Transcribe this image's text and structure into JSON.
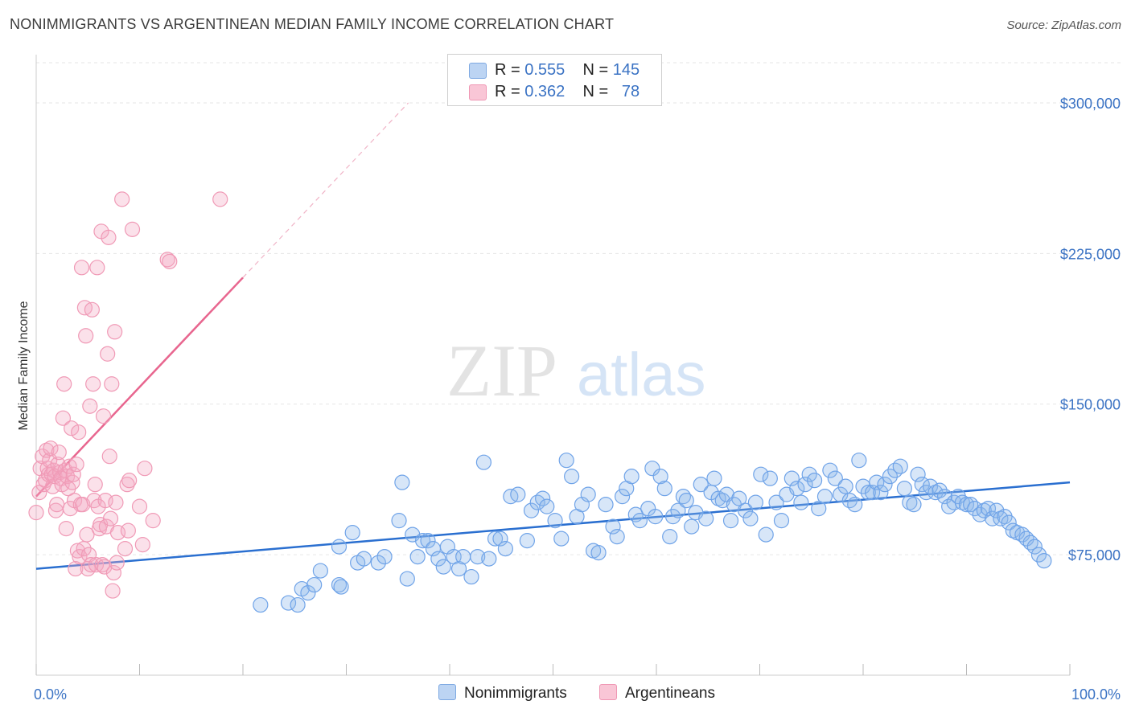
{
  "title": "NONIMMIGRANTS VS ARGENTINEAN MEDIAN FAMILY INCOME CORRELATION CHART",
  "source": "Source: ZipAtlas.com",
  "watermark": {
    "zip": "ZIP",
    "atlas": "atlas"
  },
  "legend": {
    "rows": [
      {
        "r_label": "R =",
        "r_value": "0.555",
        "n_label": "N =",
        "n_value": "145",
        "color": "#a8c8f0"
      },
      {
        "r_label": "R =",
        "r_value": "0.362",
        "n_label": "N =",
        "n_value": "78",
        "color": "#f6b8cb"
      }
    ]
  },
  "bottom_legend": [
    "Nonimmigrants",
    "Argentineans"
  ],
  "chart_data": {
    "type": "scatter",
    "title": "NONIMMIGRANTS VS ARGENTINEAN MEDIAN FAMILY INCOME CORRELATION CHART",
    "xlabel": "",
    "ylabel": "Median Family Income",
    "xlim": [
      0,
      100
    ],
    "ylim": [
      15000,
      320000
    ],
    "x_tick_labels": [
      "0.0%",
      "100.0%"
    ],
    "y_ticks": [
      75000,
      150000,
      225000,
      300000
    ],
    "y_tick_labels": [
      "$75,000",
      "$150,000",
      "$225,000",
      "$300,000"
    ],
    "grid": true,
    "colors": {
      "blue": "#6fa3e8",
      "blue_line": "#2a6fd0",
      "pink": "#f09ab6",
      "pink_line": "#e8668f"
    },
    "series": [
      {
        "name": "Nonimmigrants",
        "trend": {
          "x0": 0,
          "y0": 68000,
          "x1": 100,
          "y1": 111000
        },
        "points": [
          [
            21.7,
            50000
          ],
          [
            24.4,
            51000
          ],
          [
            25.3,
            50000
          ],
          [
            25.7,
            58000
          ],
          [
            26.3,
            56000
          ],
          [
            26.9,
            60000
          ],
          [
            27.5,
            67000
          ],
          [
            29.3,
            60000
          ],
          [
            29.5,
            59000
          ],
          [
            29.3,
            79000
          ],
          [
            30.6,
            86000
          ],
          [
            31.1,
            71000
          ],
          [
            31.7,
            73000
          ],
          [
            33.1,
            71000
          ],
          [
            33.7,
            74000
          ],
          [
            35.1,
            92000
          ],
          [
            35.4,
            111000
          ],
          [
            35.9,
            63000
          ],
          [
            36.4,
            85000
          ],
          [
            36.9,
            74000
          ],
          [
            37.4,
            82000
          ],
          [
            37.9,
            82000
          ],
          [
            38.4,
            78000
          ],
          [
            38.9,
            73000
          ],
          [
            39.4,
            69000
          ],
          [
            39.8,
            79000
          ],
          [
            40.4,
            74000
          ],
          [
            40.9,
            68000
          ],
          [
            41.3,
            74000
          ],
          [
            42.1,
            64000
          ],
          [
            42.7,
            74000
          ],
          [
            43.3,
            121000
          ],
          [
            43.8,
            73000
          ],
          [
            44.4,
            83000
          ],
          [
            44.9,
            83000
          ],
          [
            45.4,
            78000
          ],
          [
            45.9,
            104000
          ],
          [
            46.6,
            105000
          ],
          [
            47.5,
            82000
          ],
          [
            47.9,
            97000
          ],
          [
            48.5,
            101000
          ],
          [
            49.0,
            103000
          ],
          [
            49.4,
            99000
          ],
          [
            50.2,
            92000
          ],
          [
            50.8,
            83000
          ],
          [
            51.3,
            122000
          ],
          [
            51.8,
            114000
          ],
          [
            52.3,
            94000
          ],
          [
            52.8,
            100000
          ],
          [
            53.4,
            105000
          ],
          [
            53.9,
            77000
          ],
          [
            54.4,
            76000
          ],
          [
            55.1,
            100000
          ],
          [
            55.8,
            89000
          ],
          [
            56.2,
            84000
          ],
          [
            56.7,
            104000
          ],
          [
            57.1,
            108000
          ],
          [
            57.6,
            114000
          ],
          [
            58.0,
            95000
          ],
          [
            58.4,
            92000
          ],
          [
            59.2,
            98000
          ],
          [
            59.6,
            118000
          ],
          [
            59.9,
            94000
          ],
          [
            60.4,
            114000
          ],
          [
            60.8,
            108000
          ],
          [
            61.3,
            84000
          ],
          [
            61.6,
            94000
          ],
          [
            62.1,
            97000
          ],
          [
            62.6,
            104000
          ],
          [
            62.9,
            102000
          ],
          [
            63.4,
            89000
          ],
          [
            63.8,
            96000
          ],
          [
            64.3,
            110000
          ],
          [
            64.8,
            93000
          ],
          [
            65.3,
            106000
          ],
          [
            65.6,
            113000
          ],
          [
            66.0,
            103000
          ],
          [
            66.4,
            102000
          ],
          [
            66.8,
            105000
          ],
          [
            67.2,
            92000
          ],
          [
            67.5,
            100000
          ],
          [
            68.0,
            103000
          ],
          [
            68.6,
            97000
          ],
          [
            69.1,
            93000
          ],
          [
            69.6,
            101000
          ],
          [
            70.1,
            115000
          ],
          [
            70.6,
            85000
          ],
          [
            71.0,
            113000
          ],
          [
            71.6,
            101000
          ],
          [
            72.1,
            92000
          ],
          [
            72.6,
            105000
          ],
          [
            73.1,
            113000
          ],
          [
            73.6,
            108000
          ],
          [
            74.0,
            101000
          ],
          [
            74.4,
            110000
          ],
          [
            74.8,
            115000
          ],
          [
            75.3,
            112000
          ],
          [
            75.7,
            98000
          ],
          [
            76.3,
            104000
          ],
          [
            76.8,
            117000
          ],
          [
            77.3,
            113000
          ],
          [
            77.8,
            105000
          ],
          [
            78.3,
            109000
          ],
          [
            78.7,
            102000
          ],
          [
            79.2,
            100000
          ],
          [
            79.6,
            122000
          ],
          [
            80.0,
            109000
          ],
          [
            80.5,
            106000
          ],
          [
            80.9,
            106000
          ],
          [
            81.3,
            111000
          ],
          [
            81.7,
            106000
          ],
          [
            82.1,
            110000
          ],
          [
            82.6,
            114000
          ],
          [
            83.1,
            117000
          ],
          [
            83.6,
            119000
          ],
          [
            84.0,
            108000
          ],
          [
            84.5,
            101000
          ],
          [
            84.9,
            100000
          ],
          [
            85.3,
            115000
          ],
          [
            85.7,
            110000
          ],
          [
            86.1,
            106000
          ],
          [
            86.5,
            109000
          ],
          [
            87.0,
            106000
          ],
          [
            87.4,
            107000
          ],
          [
            87.9,
            104000
          ],
          [
            88.3,
            99000
          ],
          [
            88.8,
            101000
          ],
          [
            89.2,
            104000
          ],
          [
            89.6,
            101000
          ],
          [
            90.0,
            100000
          ],
          [
            90.4,
            100000
          ],
          [
            90.8,
            98000
          ],
          [
            91.3,
            95000
          ],
          [
            91.7,
            97000
          ],
          [
            92.1,
            98000
          ],
          [
            92.5,
            93000
          ],
          [
            92.9,
            97000
          ],
          [
            93.3,
            93000
          ],
          [
            93.7,
            94000
          ],
          [
            94.1,
            91000
          ],
          [
            94.5,
            87000
          ],
          [
            94.9,
            86000
          ],
          [
            95.4,
            85000
          ],
          [
            95.8,
            83000
          ],
          [
            96.2,
            81000
          ],
          [
            96.6,
            79000
          ],
          [
            97.0,
            75000
          ],
          [
            97.5,
            72000
          ]
        ]
      },
      {
        "name": "Argentineans",
        "trend": {
          "x0": 0,
          "y0": 104000,
          "x1": 20,
          "y1": 213000
        },
        "trend_ext": {
          "x0": 20,
          "y0": 213000,
          "x1": 36,
          "y1": 300000
        },
        "points": [
          [
            0.0,
            96000
          ],
          [
            0.3,
            106000
          ],
          [
            0.4,
            118000
          ],
          [
            0.6,
            124000
          ],
          [
            0.7,
            110000
          ],
          [
            0.9,
            112000
          ],
          [
            1.0,
            127000
          ],
          [
            1.1,
            118000
          ],
          [
            1.2,
            115000
          ],
          [
            1.3,
            122000
          ],
          [
            1.4,
            128000
          ],
          [
            1.5,
            115000
          ],
          [
            1.6,
            109000
          ],
          [
            1.7,
            117000
          ],
          [
            1.8,
            114000
          ],
          [
            1.9,
            97000
          ],
          [
            2.0,
            100000
          ],
          [
            2.1,
            120000
          ],
          [
            2.2,
            126000
          ],
          [
            2.3,
            116000
          ],
          [
            2.4,
            113000
          ],
          [
            2.5,
            110000
          ],
          [
            2.6,
            143000
          ],
          [
            2.7,
            160000
          ],
          [
            2.8,
            117000
          ],
          [
            2.9,
            88000
          ],
          [
            3.0,
            114000
          ],
          [
            3.1,
            108000
          ],
          [
            3.2,
            119000
          ],
          [
            3.3,
            98000
          ],
          [
            3.4,
            138000
          ],
          [
            3.5,
            111000
          ],
          [
            3.6,
            115000
          ],
          [
            3.7,
            102000
          ],
          [
            3.8,
            68000
          ],
          [
            3.9,
            120000
          ],
          [
            4.0,
            77000
          ],
          [
            4.1,
            136000
          ],
          [
            4.2,
            74000
          ],
          [
            4.3,
            100000
          ],
          [
            4.4,
            218000
          ],
          [
            4.5,
            100000
          ],
          [
            4.6,
            78000
          ],
          [
            4.7,
            198000
          ],
          [
            4.8,
            184000
          ],
          [
            4.9,
            85000
          ],
          [
            5.0,
            68000
          ],
          [
            5.1,
            75000
          ],
          [
            5.2,
            149000
          ],
          [
            5.3,
            70000
          ],
          [
            5.4,
            197000
          ],
          [
            5.5,
            160000
          ],
          [
            5.6,
            102000
          ],
          [
            5.7,
            110000
          ],
          [
            5.8,
            70000
          ],
          [
            5.9,
            218000
          ],
          [
            6.0,
            99000
          ],
          [
            6.1,
            88000
          ],
          [
            6.2,
            90000
          ],
          [
            6.3,
            236000
          ],
          [
            6.4,
            70000
          ],
          [
            6.5,
            144000
          ],
          [
            6.6,
            69000
          ],
          [
            6.7,
            102000
          ],
          [
            6.8,
            89000
          ],
          [
            6.9,
            175000
          ],
          [
            7.0,
            233000
          ],
          [
            7.1,
            124000
          ],
          [
            7.2,
            93000
          ],
          [
            7.3,
            160000
          ],
          [
            7.4,
            57000
          ],
          [
            7.5,
            66000
          ],
          [
            7.6,
            186000
          ],
          [
            7.7,
            101000
          ],
          [
            7.8,
            71000
          ],
          [
            7.9,
            86000
          ],
          [
            8.3,
            252000
          ],
          [
            8.6,
            78000
          ],
          [
            8.8,
            110000
          ],
          [
            8.9,
            87000
          ],
          [
            9.0,
            112000
          ],
          [
            9.3,
            237000
          ],
          [
            10.0,
            99000
          ],
          [
            10.3,
            80000
          ],
          [
            10.5,
            118000
          ],
          [
            11.3,
            92000
          ],
          [
            12.7,
            222000
          ],
          [
            12.9,
            221000
          ],
          [
            17.8,
            252000
          ]
        ]
      }
    ]
  }
}
